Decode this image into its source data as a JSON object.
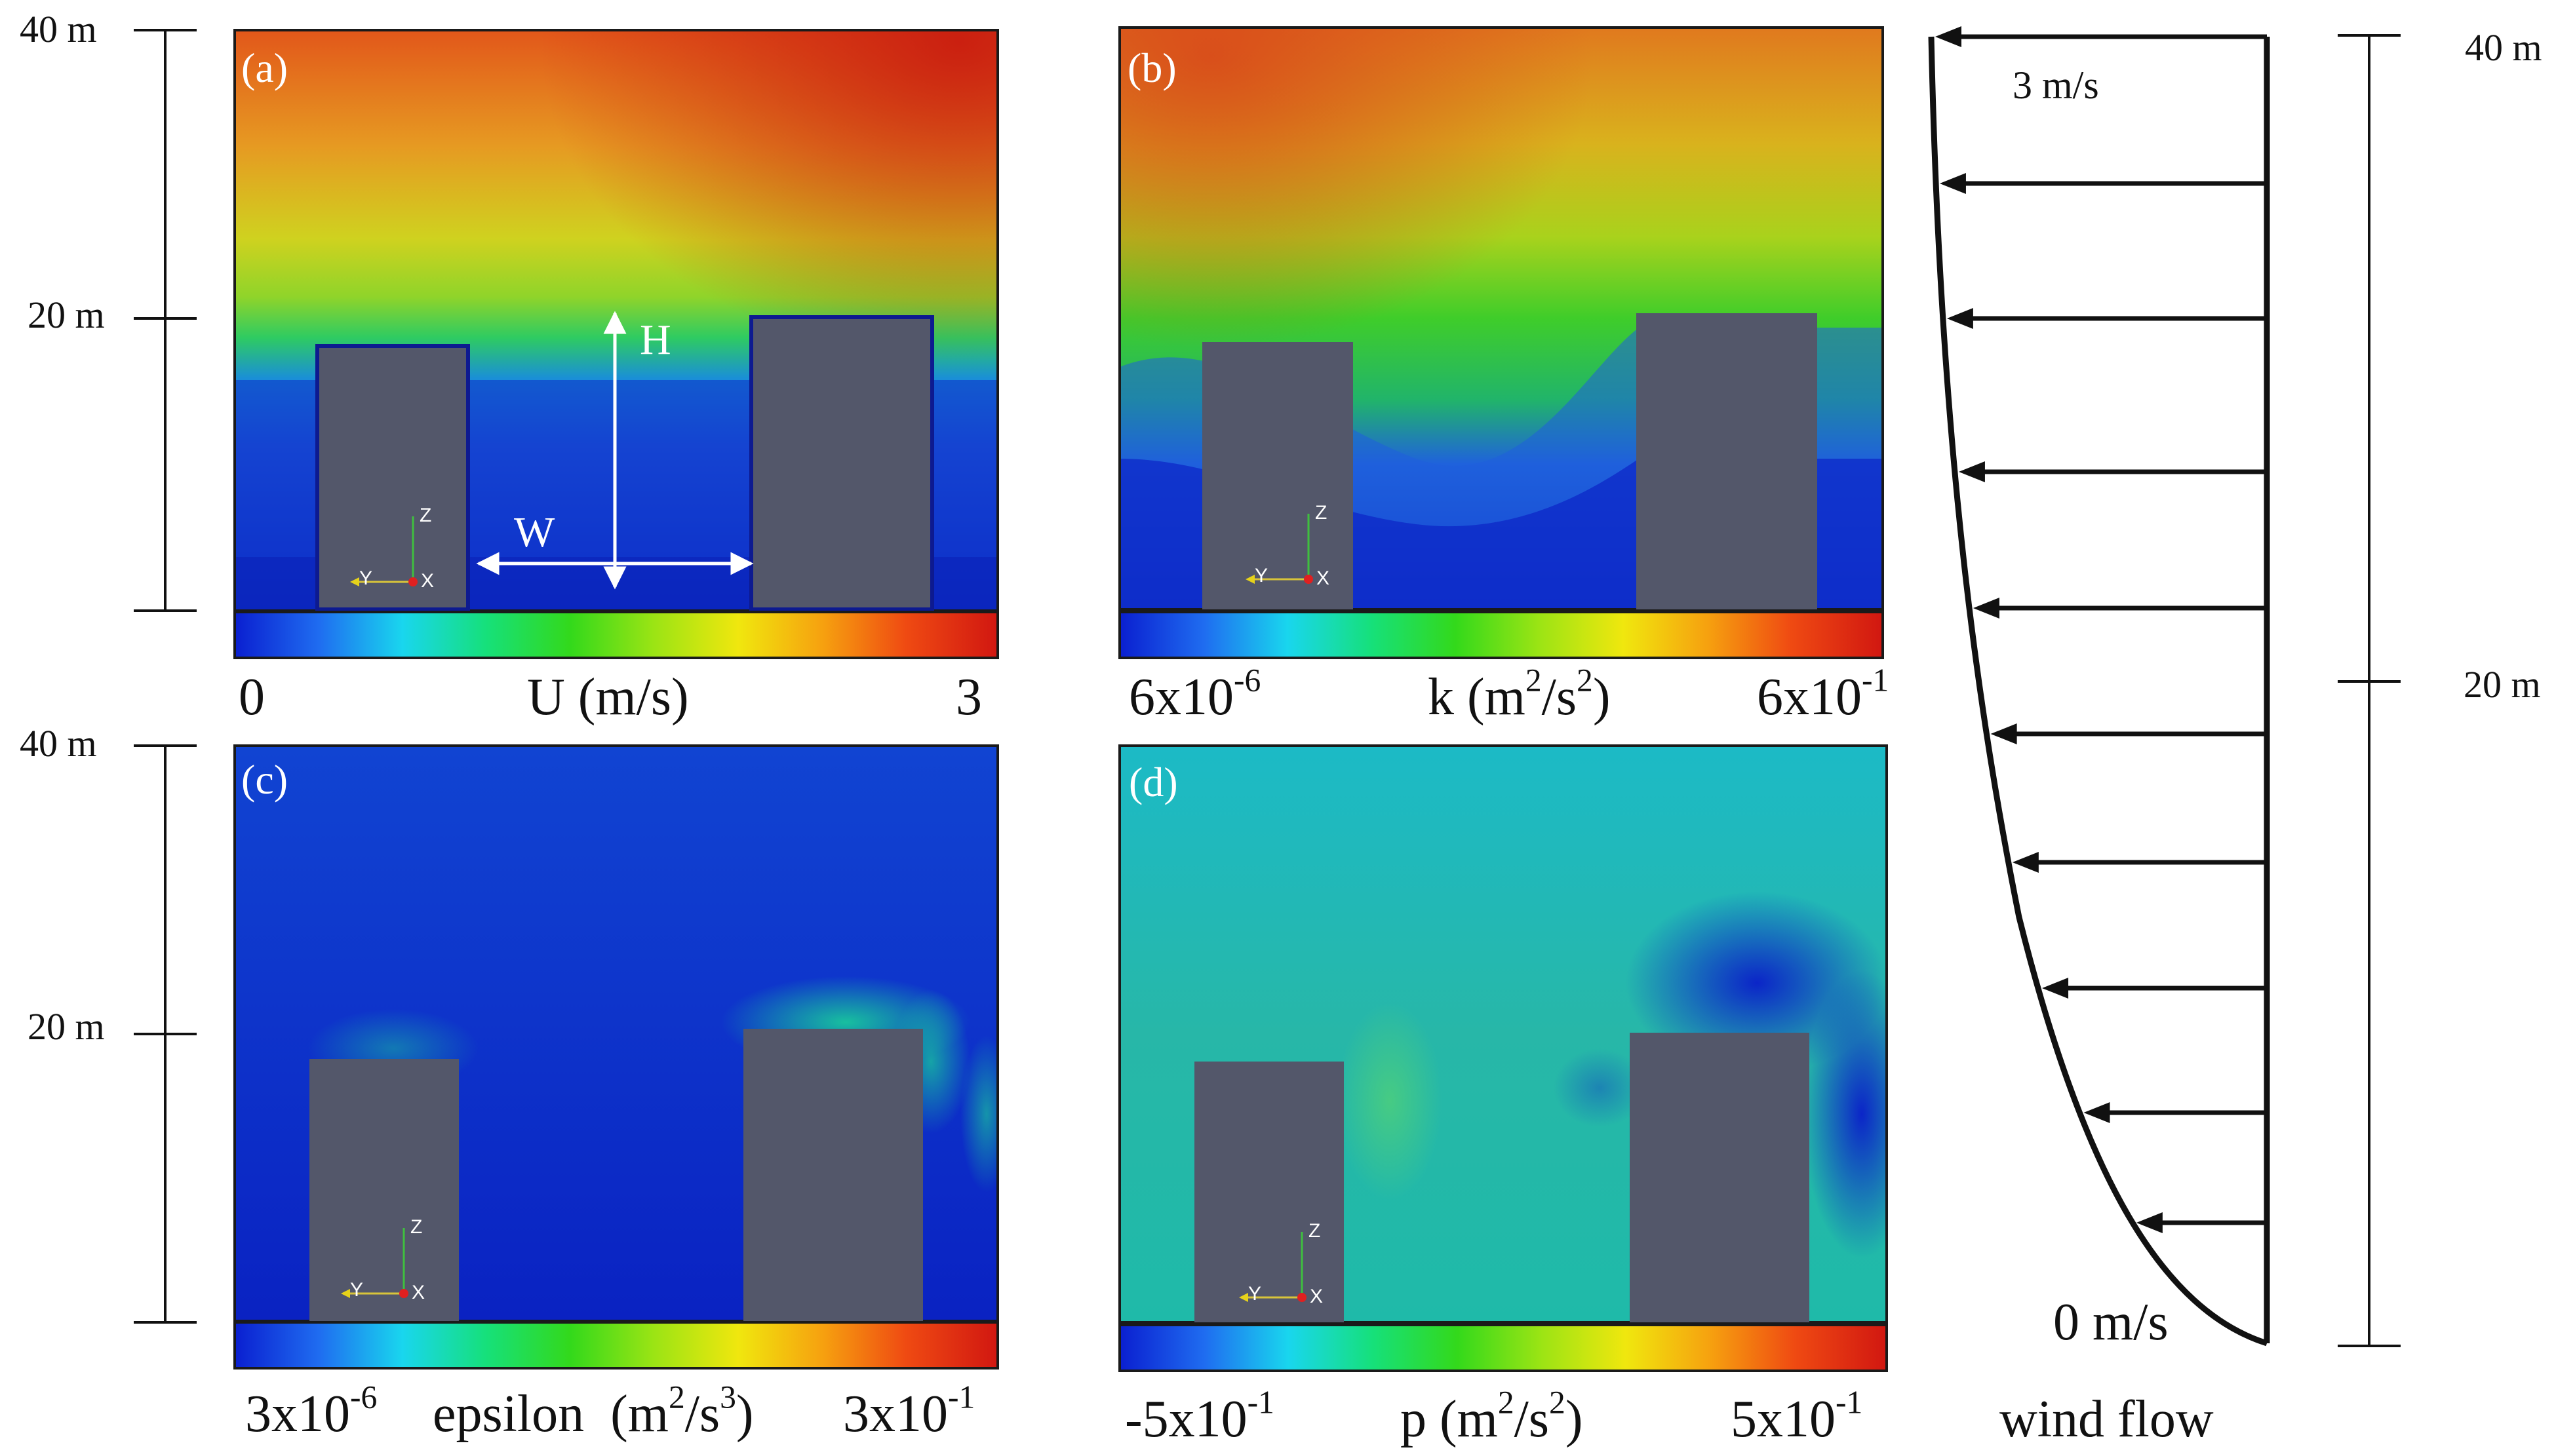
{
  "scale_left_top": {
    "top": "40 m",
    "mid": "20 m"
  },
  "scale_left_bottom": {
    "top": "40 m",
    "mid": "20 m"
  },
  "scale_right": {
    "top": "40 m",
    "mid": "20 m"
  },
  "panels": {
    "a": {
      "letter": "(a)",
      "cbar_min": "0",
      "cbar_label": "U (m/s)",
      "cbar_max": "3",
      "dim_h": "H",
      "dim_w": "W"
    },
    "b": {
      "letter": "(b)",
      "cbar_min_base": "6x10",
      "cbar_min_exp": "-6",
      "cbar_label_pre": "k (m",
      "cbar_label_sup1": "2",
      "cbar_label_mid": "/s",
      "cbar_label_sup2": "2",
      "cbar_label_post": ")",
      "cbar_max_base": "6x10",
      "cbar_max_exp": "-1"
    },
    "c": {
      "letter": "(c)",
      "cbar_min_base": "3x10",
      "cbar_min_exp": "-6",
      "cbar_label_pre": "epsilon  (m",
      "cbar_label_sup1": "2",
      "cbar_label_mid": "/s",
      "cbar_label_sup2": "3",
      "cbar_label_post": ")",
      "cbar_max_base": "3x10",
      "cbar_max_exp": "-1"
    },
    "d": {
      "letter": "(d)",
      "cbar_min_base": "-5x10",
      "cbar_min_exp": "-1",
      "cbar_label_pre": "p (m",
      "cbar_label_sup1": "2",
      "cbar_label_mid": "/s",
      "cbar_label_sup2": "2",
      "cbar_label_post": ")",
      "cbar_max_base": "5x10",
      "cbar_max_exp": "-1"
    }
  },
  "axes_triad": {
    "z": "Z",
    "y": "Y",
    "x": "X"
  },
  "wind_profile": {
    "top_speed": "3 m/s",
    "bottom_speed": "0 m/s",
    "caption": "wind flow"
  },
  "colors": {
    "building": "#53576a",
    "border": "#1a1a1a",
    "colormap": [
      "#0a1fd0",
      "#1f6cf0",
      "#19d6ee",
      "#16e07a",
      "#33d91b",
      "#9ce414",
      "#f0e70e",
      "#f6a10f",
      "#ef4a12",
      "#d11711"
    ]
  }
}
